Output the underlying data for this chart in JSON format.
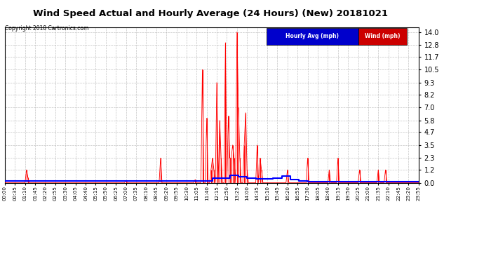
{
  "title": "Wind Speed Actual and Hourly Average (24 Hours) (New) 20181021",
  "copyright": "Copyright 2018 Cartronics.com",
  "legend_hourly_label": "Hourly Avg (mph)",
  "legend_wind_label": "Wind (mph)",
  "legend_hourly_bg": "#0000cc",
  "legend_wind_bg": "#cc0000",
  "yticks": [
    0.0,
    1.2,
    2.3,
    3.5,
    4.7,
    5.8,
    7.0,
    8.2,
    9.3,
    10.5,
    11.7,
    12.8,
    14.0
  ],
  "ylim": [
    0.0,
    14.4
  ],
  "background_color": "#ffffff",
  "plot_bg_color": "#ffffff",
  "grid_color": "#aaaaaa",
  "wind_color": "#ff0000",
  "hourly_color": "#0000ff",
  "title_fontsize": 10,
  "n_points": 288,
  "wind_spikes": {
    "15": 1.2,
    "16": 0.5,
    "84": 0.2,
    "108": 2.3,
    "132": 0.3,
    "137": 10.5,
    "140": 6.0,
    "143": 1.2,
    "144": 2.3,
    "145": 1.2,
    "147": 9.3,
    "149": 5.8,
    "150": 2.3,
    "153": 13.0,
    "155": 6.2,
    "156": 2.3,
    "157": 2.3,
    "158": 3.5,
    "159": 2.3,
    "161": 14.0,
    "162": 7.0,
    "163": 2.3,
    "166": 3.5,
    "167": 6.5,
    "168": 1.2,
    "175": 3.5,
    "177": 2.3,
    "178": 1.2,
    "196": 1.2,
    "210": 2.3,
    "225": 1.2,
    "231": 2.3,
    "246": 1.2,
    "259": 1.2,
    "264": 1.2
  },
  "hourly_steps": {
    "0": 0.15,
    "12": 0.4,
    "13": 0.7,
    "14": 0.55,
    "15": 0.4,
    "16": 0.65,
    "17": 0.15,
    "18": 0.0
  },
  "xtick_labels": [
    "00:00",
    "00:35",
    "01:10",
    "01:45",
    "02:20",
    "02:55",
    "03:30",
    "04:05",
    "04:40",
    "05:15",
    "05:50",
    "06:25",
    "07:00",
    "07:35",
    "08:10",
    "08:45",
    "09:20",
    "09:55",
    "10:30",
    "11:05",
    "11:40",
    "12:15",
    "12:50",
    "13:25",
    "14:00",
    "14:35",
    "15:10",
    "15:45",
    "16:20",
    "16:55",
    "17:30",
    "18:05",
    "18:40",
    "19:15",
    "19:50",
    "20:25",
    "21:00",
    "21:35",
    "22:10",
    "22:45",
    "23:20",
    "23:55"
  ]
}
